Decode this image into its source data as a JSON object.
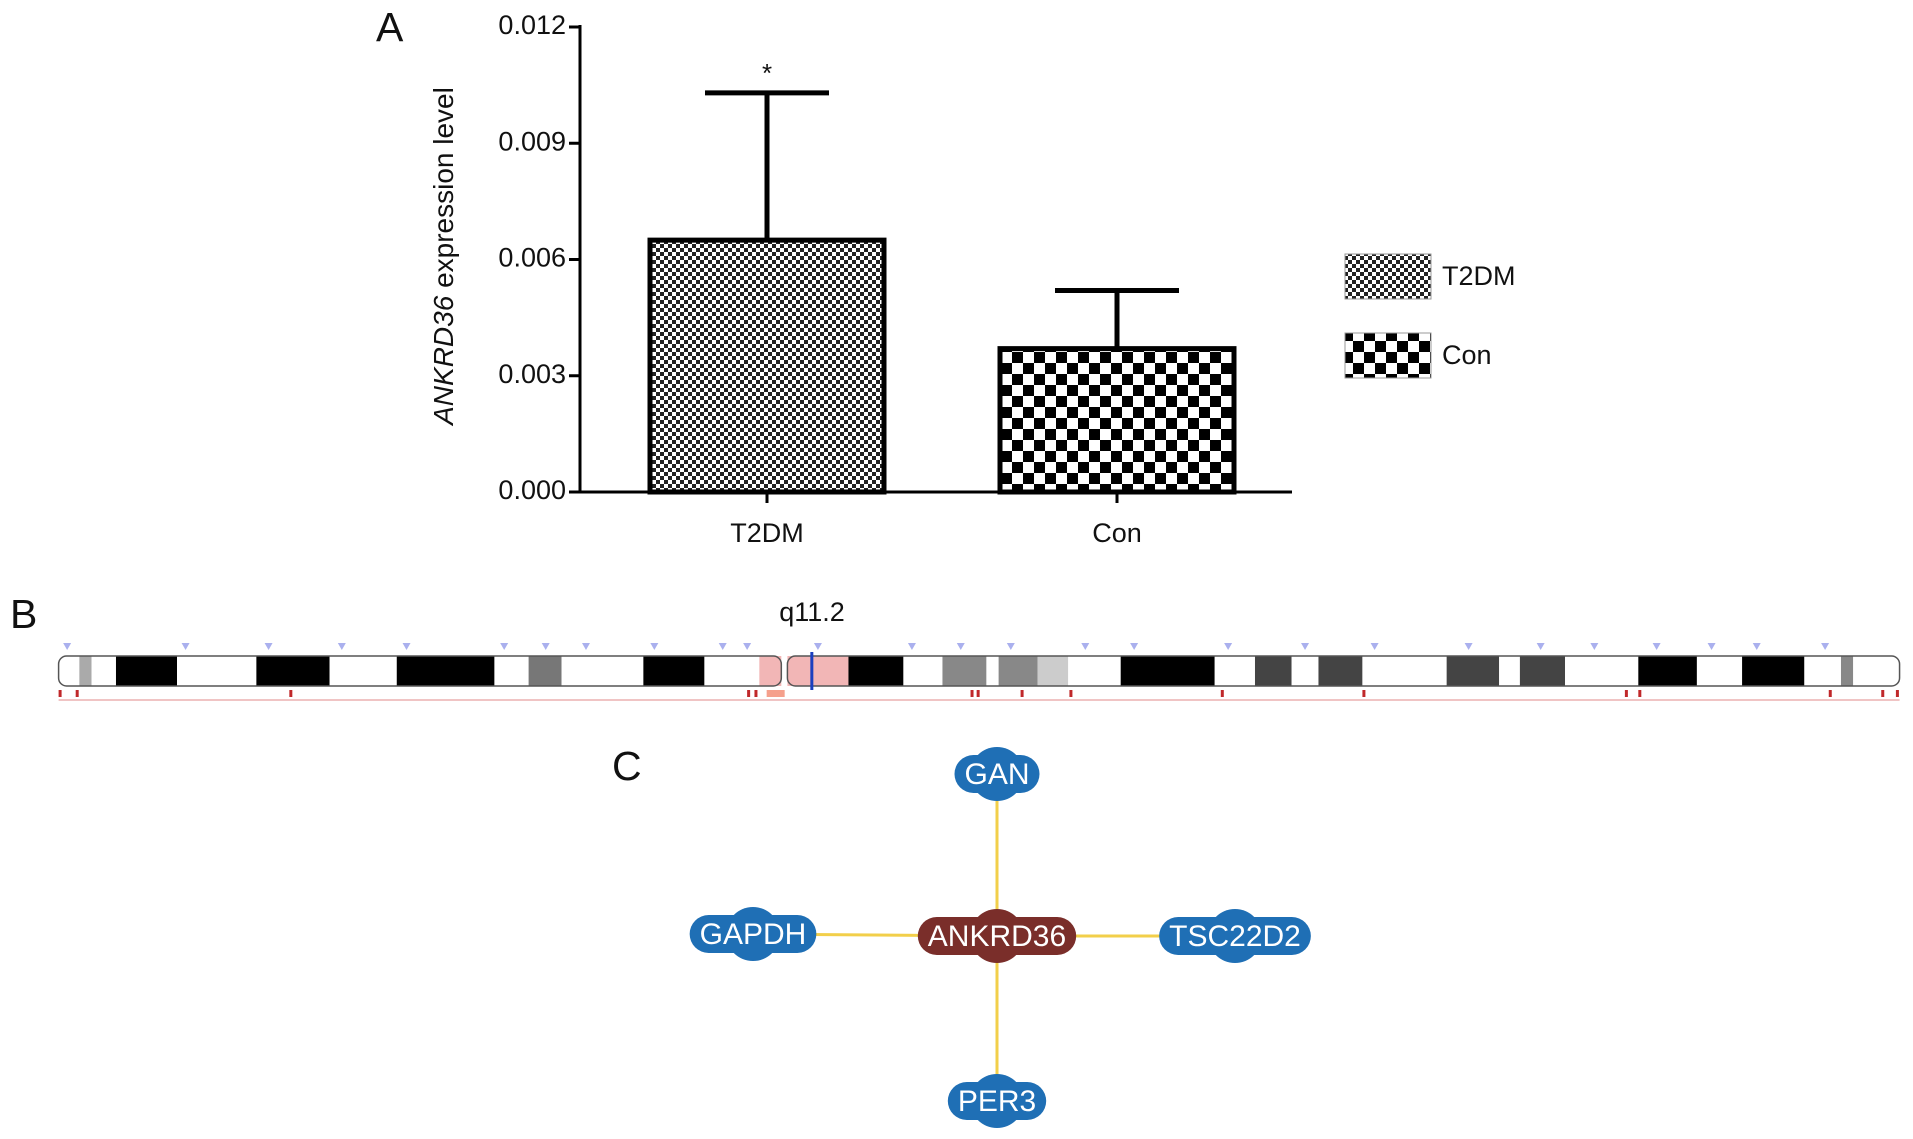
{
  "chart_data": {
    "type": "bar",
    "panel_label": "A",
    "y_label": {
      "gene": "ANKRD36",
      "text": "expression level"
    },
    "categories": [
      "T2DM",
      "Con"
    ],
    "values": [
      0.0065,
      0.0037
    ],
    "errors": [
      0.0038,
      0.0015
    ],
    "significance": [
      "*",
      null
    ],
    "ylim": [
      0,
      0.012
    ],
    "yticks": [
      {
        "value": 0,
        "label": "0.000"
      },
      {
        "value": 0.003,
        "label": "0.003"
      },
      {
        "value": 0.006,
        "label": "0.006"
      },
      {
        "value": 0.009,
        "label": "0.009"
      },
      {
        "value": 0.012,
        "label": "0.012"
      }
    ],
    "legend": true
  },
  "ideogram": {
    "panel_label": "B",
    "band_label": "q11.2"
  },
  "network": {
    "panel_label": "C",
    "center": "ANKRD36",
    "nodes": [
      "GAN",
      "GAPDH",
      "TSC22D2",
      "PER3"
    ]
  }
}
